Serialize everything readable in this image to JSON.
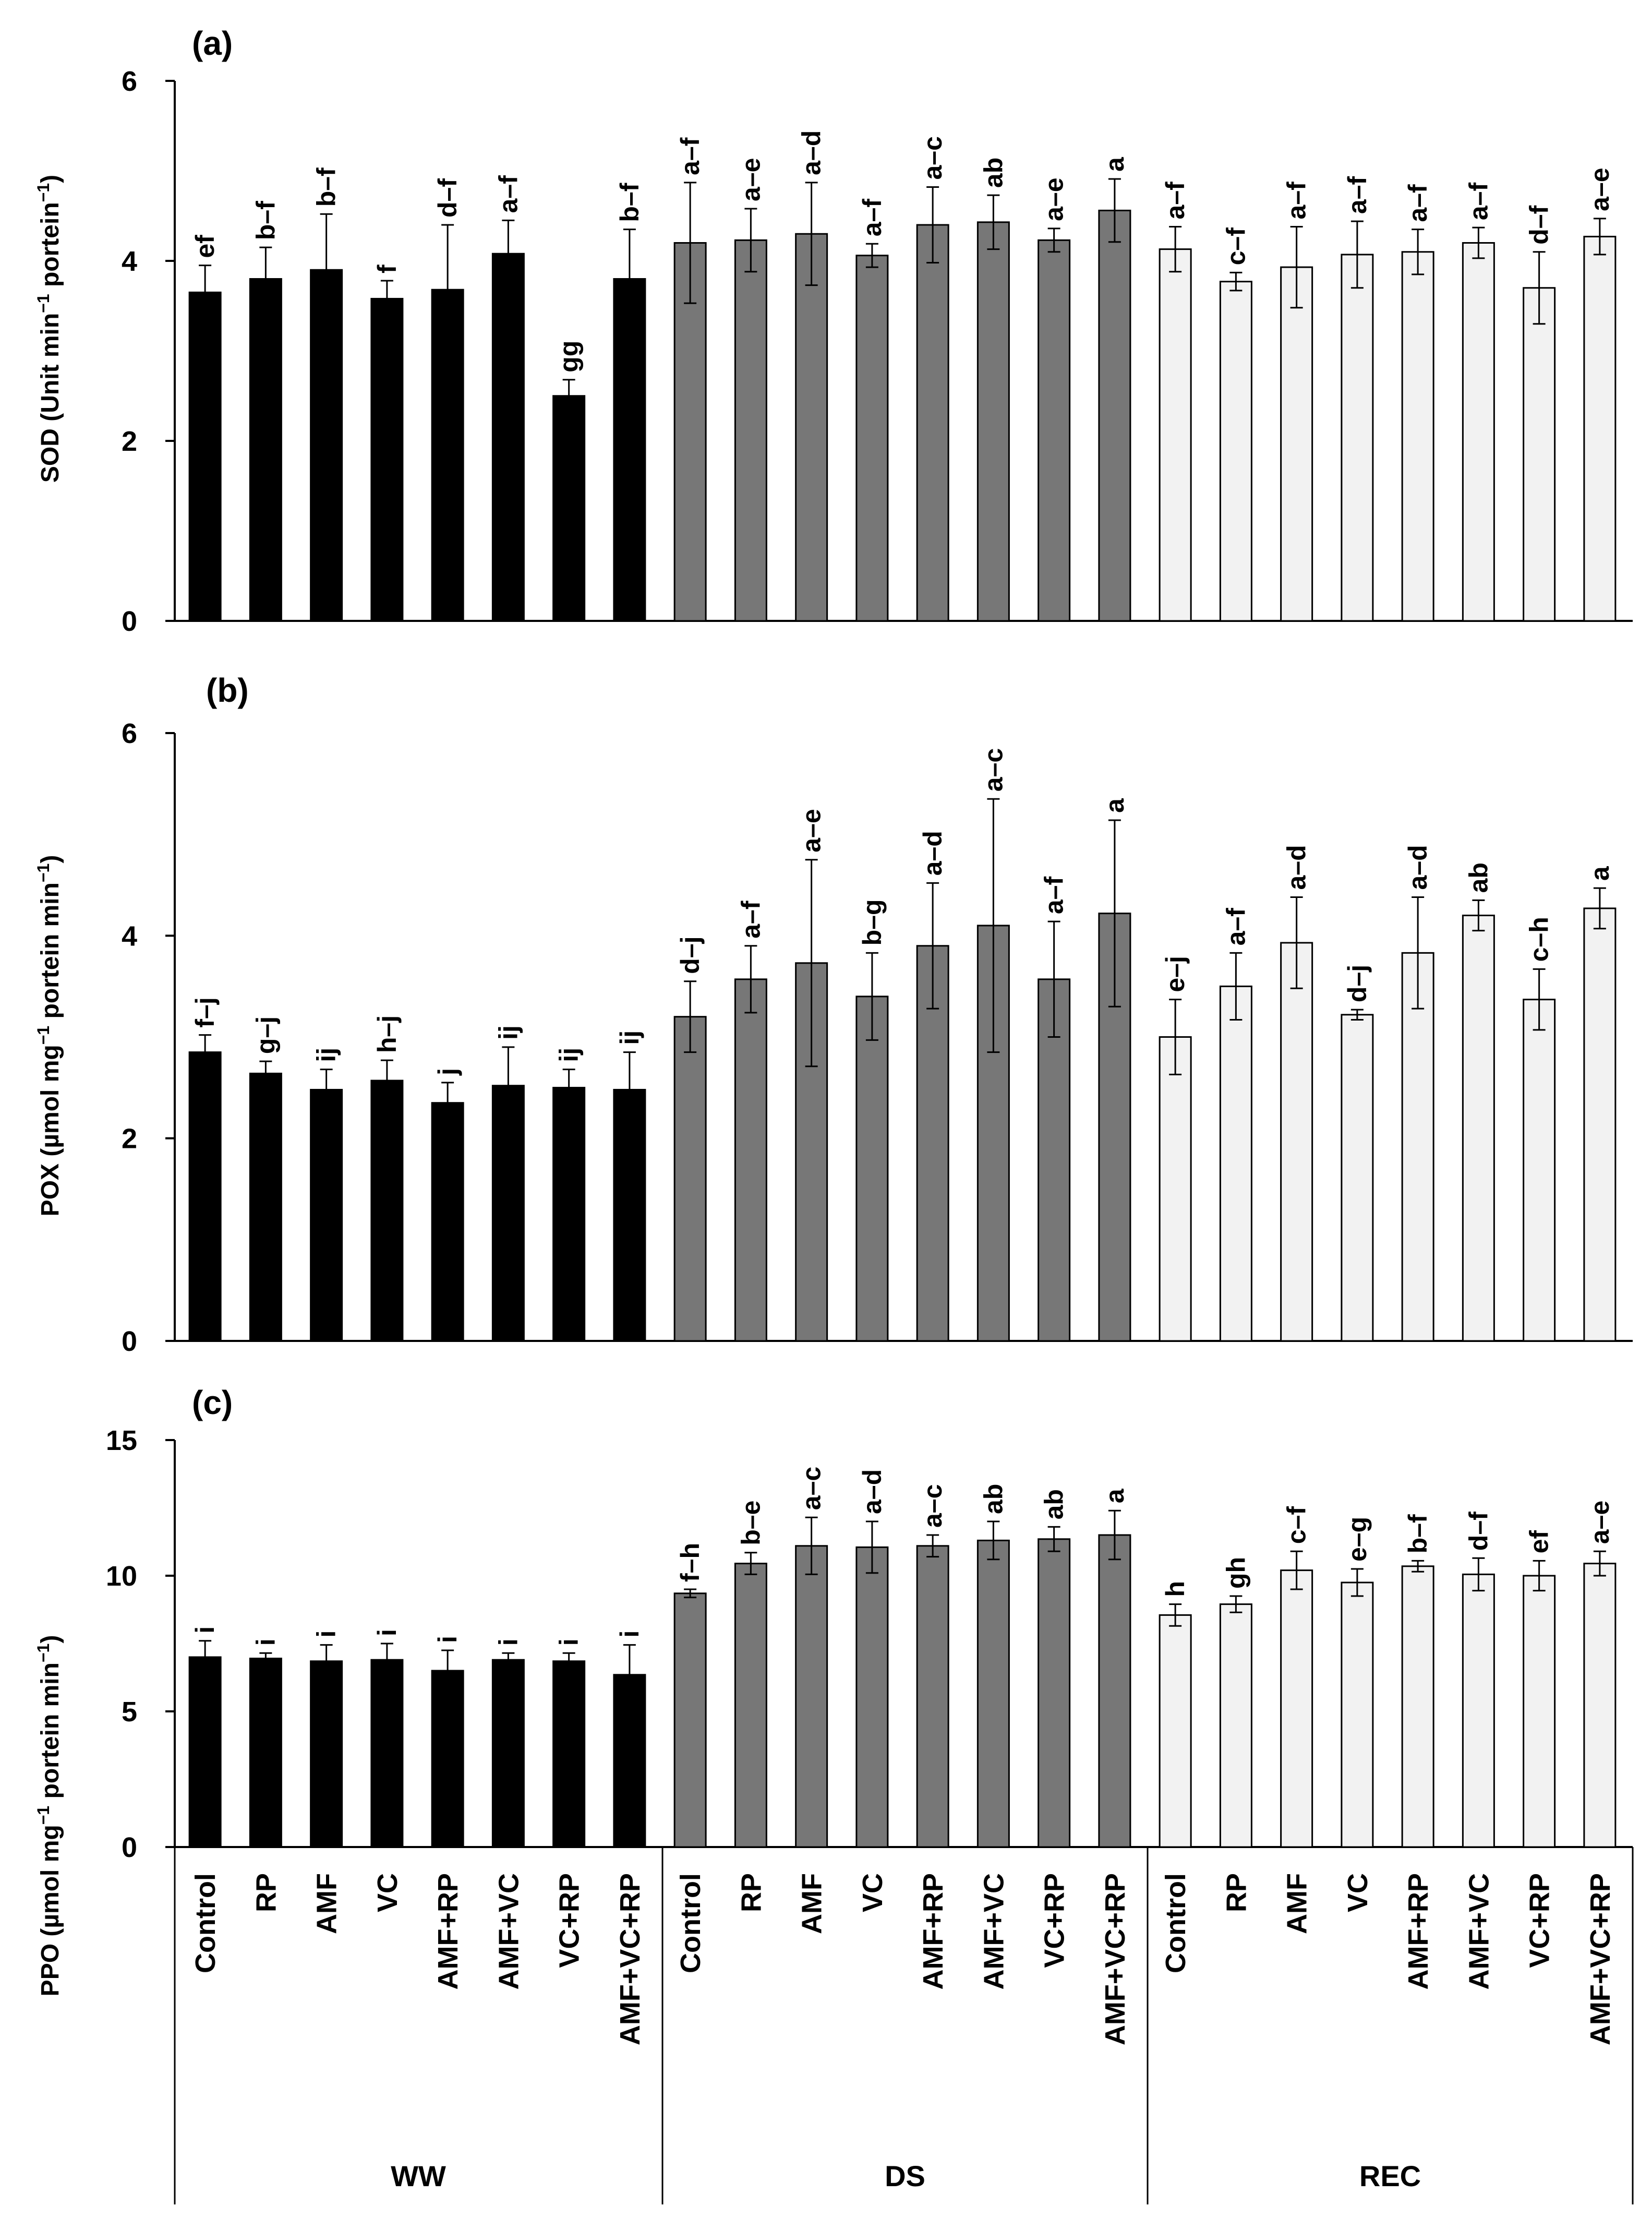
{
  "colors": {
    "WW": "#000000",
    "DS": "#777777",
    "REC": "#f2f2f2"
  },
  "x_axis": {
    "categories": [
      "Control",
      "RP",
      "AMF",
      "VC",
      "AMF+RP",
      "AMF+VC",
      "VC+RP",
      "AMF+VC+RP"
    ],
    "groups": [
      "WW",
      "DS",
      "REC"
    ]
  },
  "chart_data": [
    {
      "type": "bar",
      "panel_label": "(a)",
      "ylabel_parts": [
        "SOD (Unit min",
        "−1",
        " portein",
        "−1",
        ")"
      ],
      "ylim": [
        0,
        6
      ],
      "yticks": [
        "0",
        "2",
        "4",
        "6"
      ],
      "categories": [
        "Control",
        "RP",
        "AMF",
        "VC",
        "AMF+RP",
        "AMF+VC",
        "VC+RP",
        "AMF+VC+RP"
      ],
      "series": [
        {
          "name": "WW",
          "values": [
            3.65,
            3.8,
            3.9,
            3.58,
            3.68,
            4.08,
            2.5,
            3.8
          ],
          "errors": [
            0.3,
            0.35,
            0.62,
            0.2,
            0.72,
            0.37,
            0.18,
            0.55
          ],
          "letters": [
            "ef",
            "b–f",
            "b–f",
            "f",
            "d–f",
            "a–f",
            "gg",
            "b–f"
          ]
        },
        {
          "name": "DS",
          "values": [
            4.2,
            4.23,
            4.3,
            4.06,
            4.4,
            4.43,
            4.23,
            4.56
          ],
          "errors": [
            0.67,
            0.35,
            0.57,
            0.13,
            0.42,
            0.3,
            0.13,
            0.35
          ],
          "letters": [
            "a–f",
            "a–e",
            "a–d",
            "a–f",
            "a–c",
            "ab",
            "a–e",
            "a"
          ]
        },
        {
          "name": "REC",
          "values": [
            4.13,
            3.77,
            3.93,
            4.07,
            4.1,
            4.2,
            3.7,
            4.27
          ],
          "errors": [
            0.25,
            0.1,
            0.45,
            0.37,
            0.25,
            0.17,
            0.4,
            0.2
          ],
          "letters": [
            "a–f",
            "c–f",
            "a–f",
            "a–f",
            "a–f",
            "a–f",
            "d–f",
            "a–e"
          ]
        }
      ]
    },
    {
      "type": "bar",
      "panel_label": "(b)",
      "ylabel_parts": [
        "POX (µmol mg",
        "−1",
        " portein min",
        "−1",
        ")"
      ],
      "ylim": [
        0,
        6
      ],
      "yticks": [
        "0",
        "2",
        "4",
        "6"
      ],
      "categories": [
        "Control",
        "RP",
        "AMF",
        "VC",
        "AMF+RP",
        "AMF+VC",
        "VC+RP",
        "AMF+VC+RP"
      ],
      "series": [
        {
          "name": "WW",
          "values": [
            2.85,
            2.64,
            2.48,
            2.57,
            2.35,
            2.52,
            2.5,
            2.48
          ],
          "errors": [
            0.17,
            0.12,
            0.2,
            0.2,
            0.2,
            0.38,
            0.18,
            0.37
          ],
          "letters": [
            "f–j",
            "g–j",
            "ij",
            "h–j",
            "j",
            "ij",
            "ij",
            "ij"
          ]
        },
        {
          "name": "DS",
          "values": [
            3.2,
            3.57,
            3.73,
            3.4,
            3.9,
            4.1,
            3.57,
            4.22
          ],
          "errors": [
            0.35,
            0.33,
            1.02,
            0.43,
            0.62,
            1.25,
            0.57,
            0.92
          ],
          "letters": [
            "d–j",
            "a–f",
            "a–e",
            "b–g",
            "a–d",
            "a–c",
            "a–f",
            "a"
          ]
        },
        {
          "name": "REC",
          "values": [
            3.0,
            3.5,
            3.93,
            3.22,
            3.83,
            4.2,
            3.37,
            4.27
          ],
          "errors": [
            0.37,
            0.33,
            0.45,
            0.05,
            0.55,
            0.15,
            0.3,
            0.2
          ],
          "letters": [
            "e–j",
            "a–f",
            "a–d",
            "d–j",
            "a–d",
            "ab",
            "c–h",
            "a"
          ]
        }
      ]
    },
    {
      "type": "bar",
      "panel_label": "(c)",
      "ylabel_parts": [
        "PPO (µmol mg",
        "−1",
        "  portein min",
        "−1",
        ")"
      ],
      "ylim": [
        0,
        15
      ],
      "yticks": [
        "0",
        "5",
        "10",
        "15"
      ],
      "categories": [
        "Control",
        "RP",
        "AMF",
        "VC",
        "AMF+RP",
        "AMF+VC",
        "VC+RP",
        "AMF+VC+RP"
      ],
      "series": [
        {
          "name": "WW",
          "values": [
            7.0,
            6.95,
            6.85,
            6.9,
            6.5,
            6.9,
            6.85,
            6.35
          ],
          "errors": [
            0.6,
            0.2,
            0.6,
            0.6,
            0.75,
            0.25,
            0.3,
            1.1
          ],
          "letters": [
            "i",
            "i",
            "i",
            "i",
            "i",
            "i",
            "i",
            "i"
          ]
        },
        {
          "name": "DS",
          "values": [
            9.35,
            10.45,
            11.1,
            11.05,
            11.1,
            11.3,
            11.35,
            11.5
          ],
          "errors": [
            0.15,
            0.4,
            1.05,
            0.95,
            0.4,
            0.7,
            0.45,
            0.9
          ],
          "letters": [
            "f–h",
            "b–e",
            "a–c",
            "a–d",
            "a–c",
            "ab",
            "ab",
            "a"
          ]
        },
        {
          "name": "REC",
          "values": [
            8.55,
            8.95,
            10.2,
            9.75,
            10.35,
            10.05,
            10.0,
            10.45
          ],
          "errors": [
            0.4,
            0.3,
            0.7,
            0.5,
            0.2,
            0.6,
            0.55,
            0.45
          ],
          "letters": [
            "h",
            "gh",
            "c–f",
            "e–g",
            "b–f",
            "d–f",
            "ef",
            "a–e"
          ]
        }
      ]
    }
  ]
}
